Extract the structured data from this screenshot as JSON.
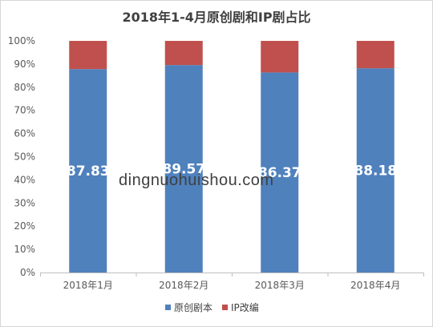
{
  "chart_data": {
    "type": "bar",
    "stacked": true,
    "percent": true,
    "title": "2018年1-4月原创剧和IP剧占比",
    "categories": [
      "2018年1月",
      "2018年2月",
      "2018年3月",
      "2018年4月"
    ],
    "series": [
      {
        "name": "原创剧本",
        "values": [
          87.83,
          89.57,
          86.37,
          88.18
        ],
        "color": "#4f81bd",
        "data_labels": [
          "87.83",
          "89.57",
          "86.37",
          "88.18"
        ]
      },
      {
        "name": "IP改编",
        "values": [
          12.17,
          10.43,
          13.63,
          11.82
        ],
        "color": "#c0504d"
      }
    ],
    "ylim": [
      0,
      100
    ],
    "yticks": [
      "0%",
      "10%",
      "20%",
      "30%",
      "40%",
      "50%",
      "60%",
      "70%",
      "80%",
      "90%",
      "100%"
    ],
    "grid": false,
    "legend": "bottom"
  },
  "watermark": "dingnuohuishou.com"
}
